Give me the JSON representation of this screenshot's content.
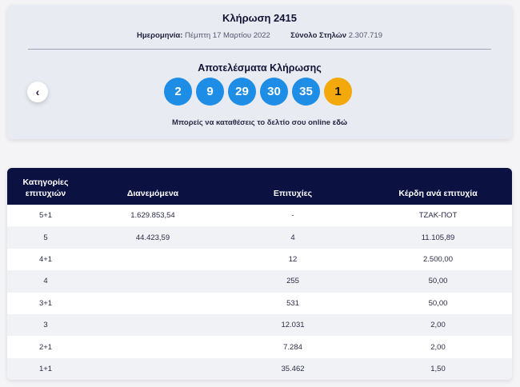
{
  "draw": {
    "title": "Κλήρωση 2415",
    "date_label": "Ημερομηνία:",
    "date_value": "Πέμπτη 17 Μαρτίου 2022",
    "columns_label": "Σύνολο Στηλών",
    "columns_value": "2.307.719",
    "results_title": "Αποτελέσματα Κλήρωσης",
    "back_icon": "chevron-left-icon",
    "back_glyph": "‹",
    "numbers": [
      "2",
      "9",
      "29",
      "30",
      "35"
    ],
    "joker": "1",
    "colors": {
      "number_ball": "#1e8de6",
      "joker_ball": "#f3a80c",
      "header_bg": "#0b1140"
    },
    "online_text": "Μπορείς να καταθέσεις το δελτίο σου online",
    "online_link": "εδώ"
  },
  "table": {
    "headers": {
      "category": "Κατηγορίες επιτυχιών",
      "distributed": "Διανεμόμενα",
      "winners": "Επιτυχίες",
      "prize": "Κέρδη ανά επιτυχία"
    },
    "rows": [
      {
        "category": "5+1",
        "distributed": "1.629.853,54",
        "winners": "-",
        "prize": "ΤΖΑΚ-ΠΟΤ"
      },
      {
        "category": "5",
        "distributed": "44.423,59",
        "winners": "4",
        "prize": "11.105,89"
      },
      {
        "category": "4+1",
        "distributed": "",
        "winners": "12",
        "prize": "2.500,00"
      },
      {
        "category": "4",
        "distributed": "",
        "winners": "255",
        "prize": "50,00"
      },
      {
        "category": "3+1",
        "distributed": "",
        "winners": "531",
        "prize": "50,00"
      },
      {
        "category": "3",
        "distributed": "",
        "winners": "12.031",
        "prize": "2,00"
      },
      {
        "category": "2+1",
        "distributed": "",
        "winners": "7.284",
        "prize": "2,00"
      },
      {
        "category": "1+1",
        "distributed": "",
        "winners": "35.462",
        "prize": "1,50"
      }
    ]
  }
}
